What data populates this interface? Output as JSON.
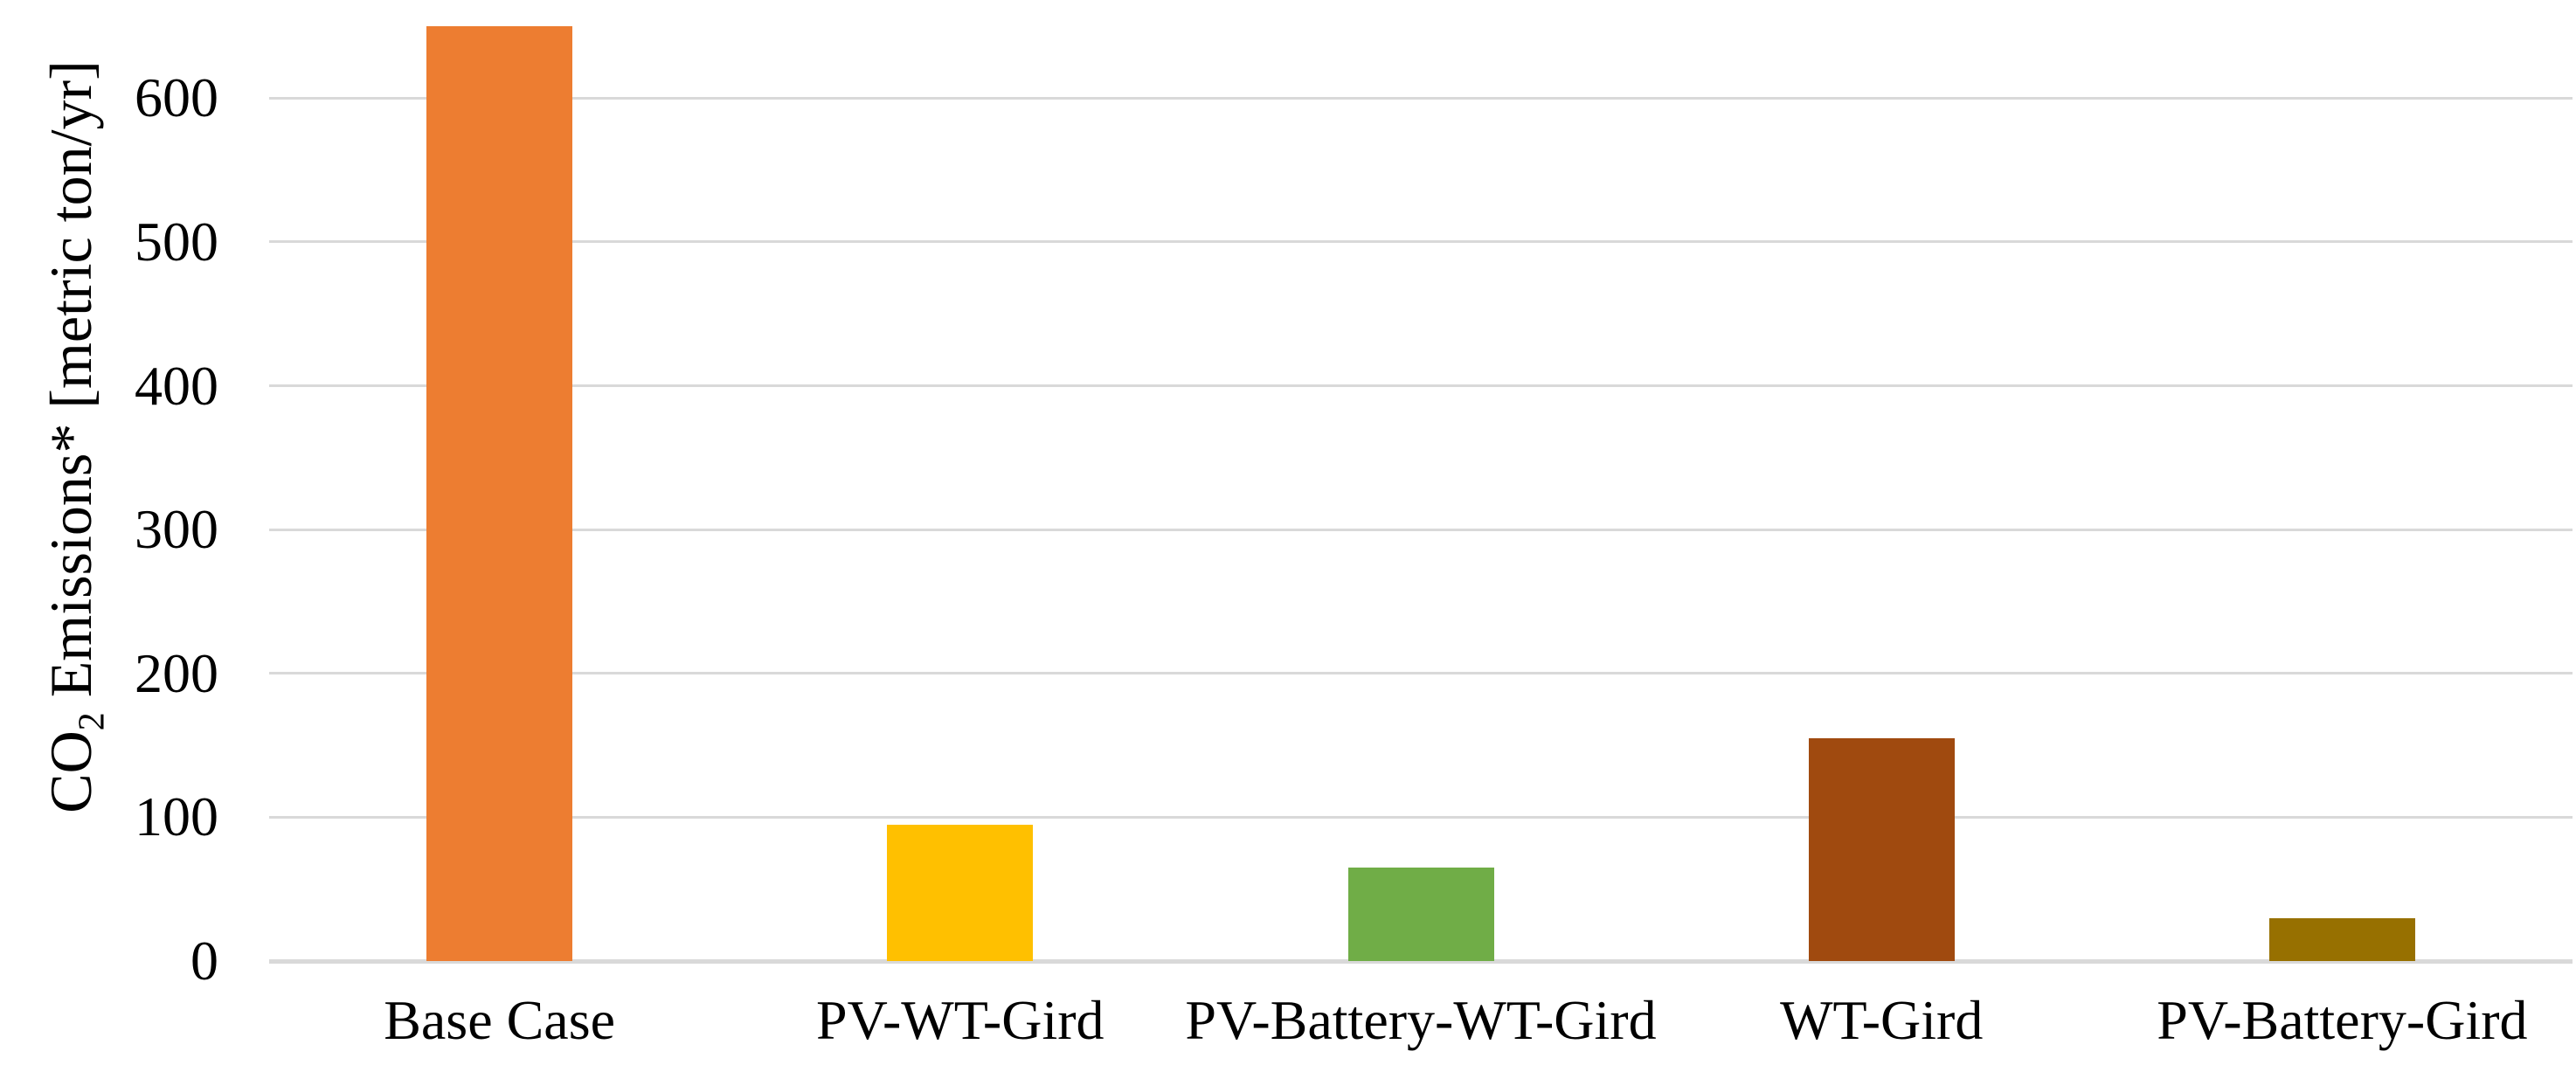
{
  "chart_data": {
    "type": "bar",
    "title": "",
    "xlabel": "",
    "ylabel": "CO2 Emissions* [metric ton/yr]",
    "ylabel_parts": {
      "prefix": "CO",
      "subscript": "2",
      "suffix": " Emissions* [metric ton/yr]"
    },
    "categories": [
      "Base Case",
      "PV-WT-Gird",
      "PV-Battery-WT-Gird",
      "WT-Gird",
      "PV-Battery-Gird"
    ],
    "values": [
      650,
      95,
      65,
      155,
      30
    ],
    "colors": [
      "#ED7D31",
      "#FFC000",
      "#70AD47",
      "#A04A0F",
      "#977000"
    ],
    "ylim": [
      0,
      650
    ],
    "yticks": [
      0,
      100,
      200,
      300,
      400,
      500,
      600
    ],
    "grid": "horizontal",
    "legend": "none",
    "gridline_color": "#D9D9D9",
    "axis_line_color": "#D9D9D9",
    "text_color": "#000000",
    "background": "#FFFFFF"
  }
}
